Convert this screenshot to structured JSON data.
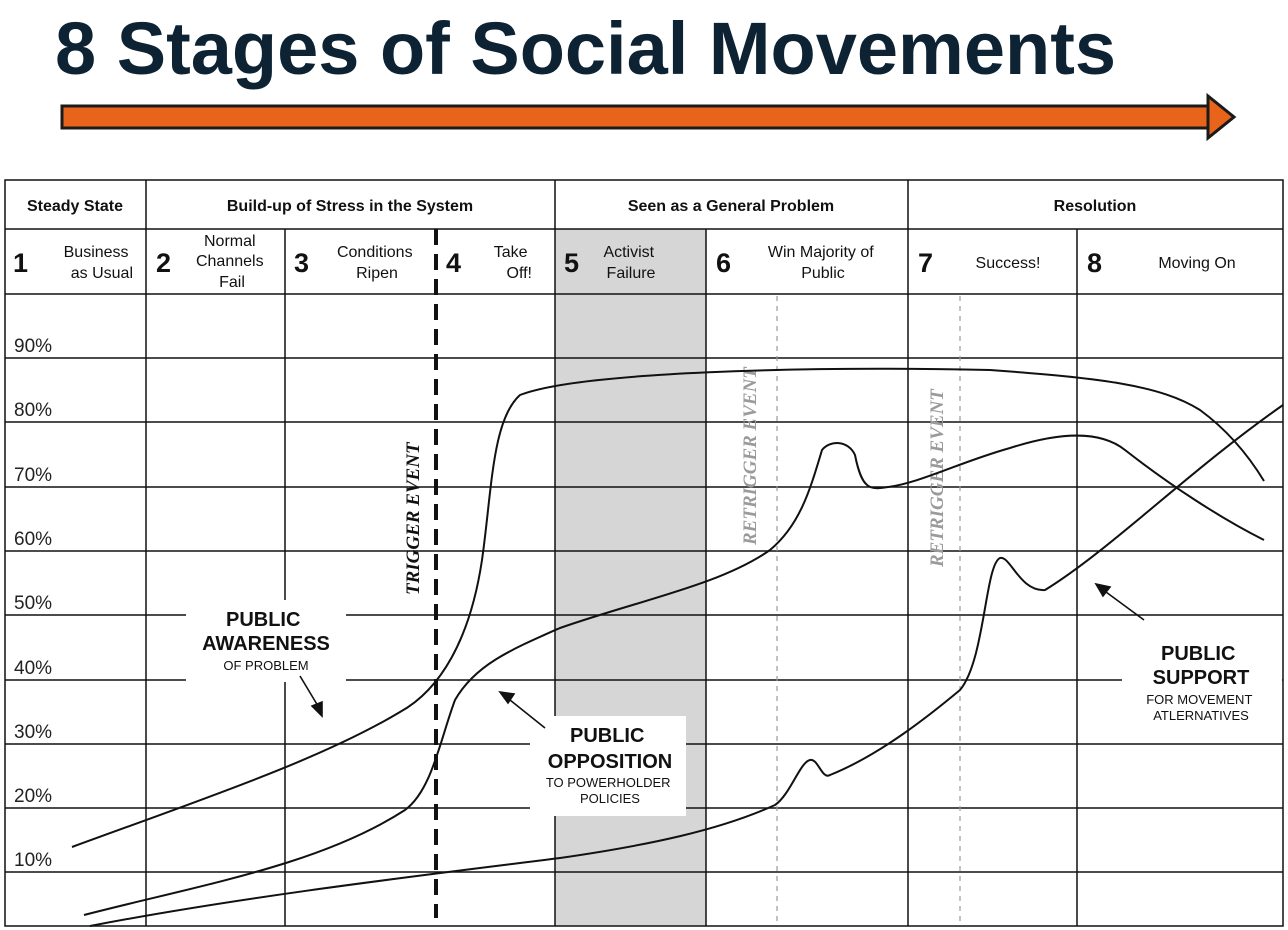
{
  "title": "8 Stages of Social Movements",
  "colors": {
    "title": "#0d2233",
    "arrow": "#e8641b",
    "shaded_stage": "#d6d6d6",
    "retrigger": "#9a9a9a"
  },
  "phases": [
    "Steady State",
    "Build-up of Stress in the System",
    "Seen as a General Problem",
    "Resolution"
  ],
  "stages": [
    {
      "number": "1",
      "lines": [
        "Business",
        "as Usual"
      ]
    },
    {
      "number": "2",
      "lines": [
        "Normal",
        "Channels",
        "Fail"
      ]
    },
    {
      "number": "3",
      "lines": [
        "Conditions",
        "Ripen"
      ]
    },
    {
      "number": "4",
      "lines": [
        "Take",
        "Off!"
      ]
    },
    {
      "number": "5",
      "lines": [
        "Activist",
        "Failure"
      ]
    },
    {
      "number": "6",
      "lines": [
        "Win Majority of",
        "Public"
      ]
    },
    {
      "number": "7",
      "lines": [
        "Success!"
      ]
    },
    {
      "number": "8",
      "lines": [
        "Moving On"
      ]
    }
  ],
  "y_ticks": [
    "90%",
    "80%",
    "70%",
    "60%",
    "50%",
    "40%",
    "30%",
    "20%",
    "10%"
  ],
  "events": {
    "trigger": "TRIGGER EVENT",
    "retrigger": "RETRIGGER EVENT"
  },
  "labels": {
    "awareness": {
      "main": [
        "PUBLIC",
        "AWARENESS"
      ],
      "sub": [
        "OF PROBLEM"
      ]
    },
    "opposition": {
      "main": [
        "PUBLIC",
        "OPPOSITION"
      ],
      "sub": [
        "TO POWERHOLDER",
        "POLICIES"
      ]
    },
    "support": {
      "main": [
        "PUBLIC",
        "SUPPORT"
      ],
      "sub": [
        "FOR MOVEMENT",
        "ATLERNATIVES"
      ]
    }
  }
}
